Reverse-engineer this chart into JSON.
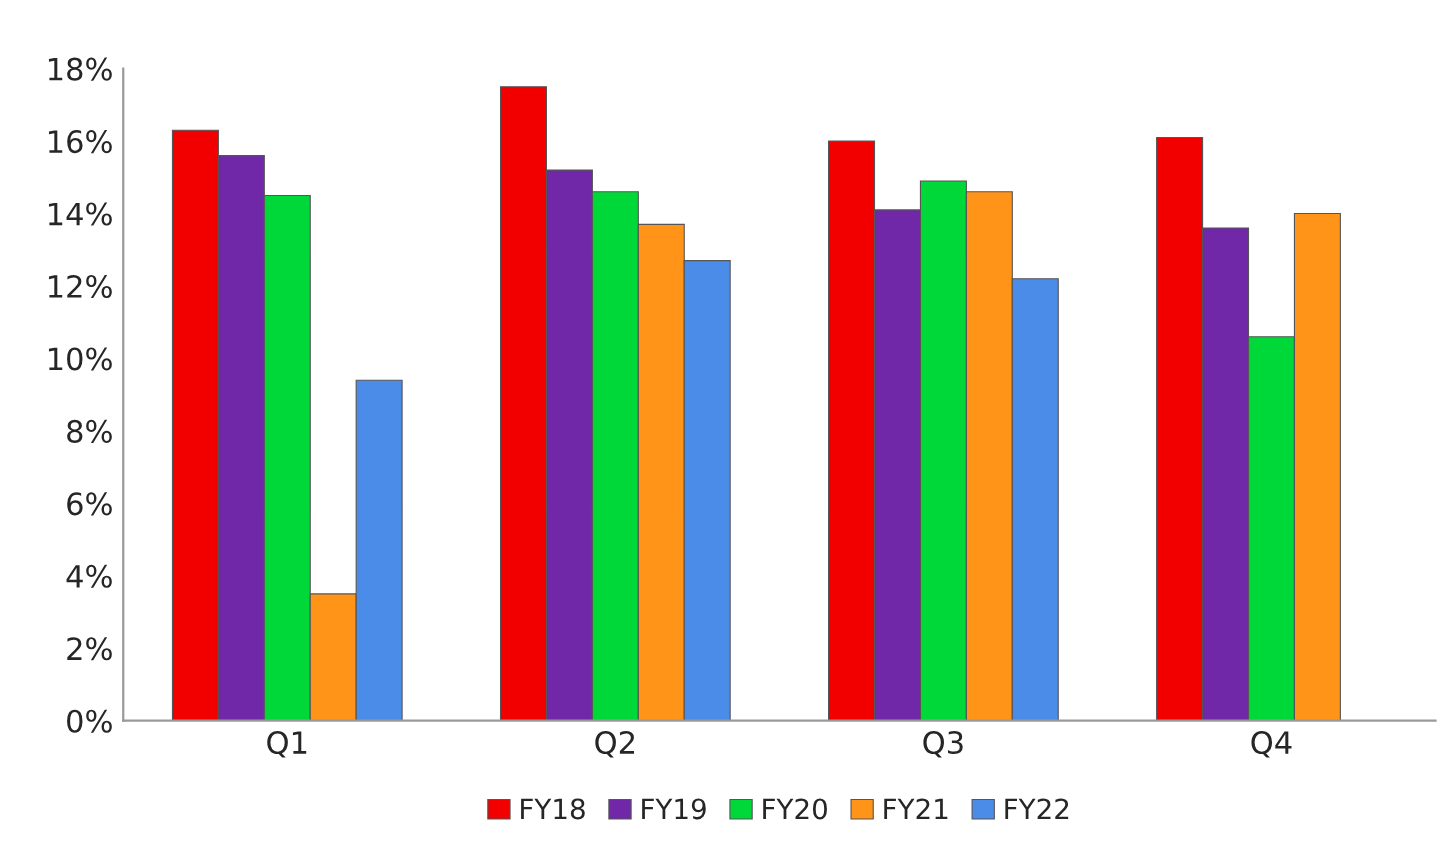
{
  "chart_data": {
    "type": "bar",
    "categories": [
      "Q1",
      "Q2",
      "Q3",
      "Q4"
    ],
    "series": [
      {
        "name": "FY18",
        "color": "#f20000",
        "values": [
          16.3,
          17.5,
          16.0,
          16.1
        ]
      },
      {
        "name": "FY19",
        "color": "#7028a8",
        "values": [
          15.6,
          15.2,
          14.1,
          13.6
        ]
      },
      {
        "name": "FY20",
        "color": "#00d83a",
        "values": [
          14.5,
          14.6,
          14.9,
          10.6
        ]
      },
      {
        "name": "FY21",
        "color": "#ff9418",
        "values": [
          3.5,
          13.7,
          14.6,
          14.0
        ]
      },
      {
        "name": "FY22",
        "color": "#4a8ce8",
        "values": [
          9.4,
          12.7,
          12.2,
          null
        ]
      }
    ],
    "ylim": [
      0,
      18
    ],
    "yticks": [
      {
        "value": 0,
        "label": "0%"
      },
      {
        "value": 2,
        "label": "2%"
      },
      {
        "value": 4,
        "label": "4%"
      },
      {
        "value": 6,
        "label": "6%"
      },
      {
        "value": 8,
        "label": "8%"
      },
      {
        "value": 10,
        "label": "10%"
      },
      {
        "value": 12,
        "label": "12%"
      },
      {
        "value": 14,
        "label": "14%"
      },
      {
        "value": 16,
        "label": "16%"
      },
      {
        "value": 18,
        "label": "18%"
      }
    ],
    "grid": false,
    "legend": "bottom"
  }
}
